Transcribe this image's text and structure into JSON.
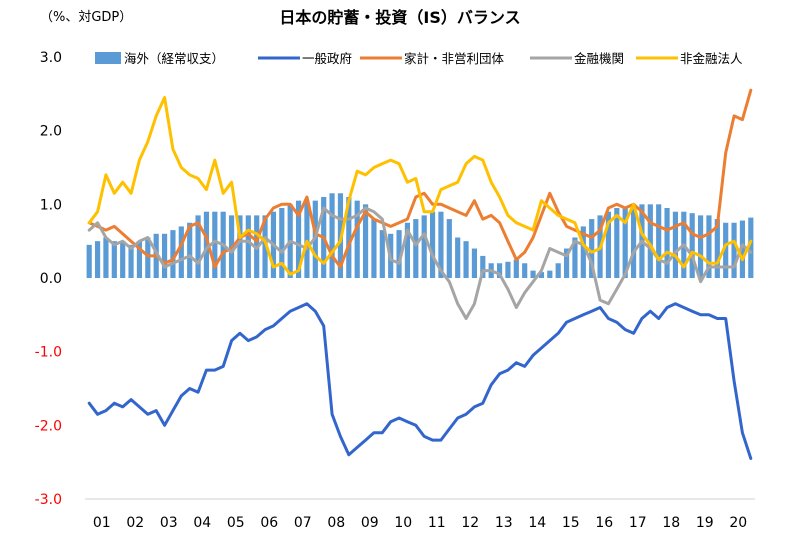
{
  "chart_data": {
    "type": "bar+line",
    "title": "日本の貯蓄・投資（IS）バランス",
    "unit_label": "（%、対GDP）",
    "ylim": [
      -3.0,
      3.0
    ],
    "y_ticks": [
      3.0,
      2.0,
      1.0,
      0.0,
      -1.0,
      -2.0,
      -3.0
    ],
    "y_tick_labels": [
      "3.0",
      "2.0",
      "1.0",
      "0.0",
      "-1.0",
      "-2.0",
      "-3.0"
    ],
    "x_labels": [
      "01",
      "02",
      "03",
      "04",
      "05",
      "06",
      "07",
      "08",
      "09",
      "10",
      "11",
      "12",
      "13",
      "14",
      "15",
      "16",
      "17",
      "18",
      "19",
      "20"
    ],
    "x_start": 2001.0,
    "x_step": 0.25,
    "legend_position": "top",
    "colors": {
      "overseas": "#5B9BD5",
      "government": "#3366CC",
      "household": "#ED7D31",
      "financial": "#A5A5A5",
      "nonfinancial": "#FFC000",
      "negative_tick": "#FF0000",
      "axis_text": "#000000"
    },
    "series": [
      {
        "name": "海外（経常収支）",
        "key": "overseas",
        "kind": "bar",
        "values": [
          0.45,
          0.5,
          0.55,
          0.5,
          0.5,
          0.45,
          0.5,
          0.55,
          0.6,
          0.6,
          0.65,
          0.7,
          0.75,
          0.85,
          0.9,
          0.9,
          0.9,
          0.85,
          0.85,
          0.85,
          0.85,
          0.85,
          0.9,
          0.95,
          1.0,
          1.05,
          1.05,
          1.05,
          1.1,
          1.15,
          1.15,
          1.1,
          1.05,
          1.0,
          0.8,
          0.65,
          0.6,
          0.65,
          0.75,
          0.8,
          0.85,
          0.9,
          0.9,
          0.8,
          0.55,
          0.5,
          0.4,
          0.3,
          0.2,
          0.2,
          0.22,
          0.25,
          0.2,
          0.1,
          0.08,
          0.1,
          0.2,
          0.4,
          0.55,
          0.7,
          0.8,
          0.85,
          0.9,
          0.95,
          0.95,
          1.0,
          1.0,
          1.0,
          1.0,
          0.95,
          0.9,
          0.9,
          0.88,
          0.85,
          0.85,
          0.8,
          0.75,
          0.75,
          0.78,
          0.82
        ]
      },
      {
        "name": "一般政府",
        "key": "government",
        "kind": "line",
        "values": [
          -1.7,
          -1.85,
          -1.8,
          -1.7,
          -1.75,
          -1.65,
          -1.75,
          -1.85,
          -1.8,
          -2.0,
          -1.8,
          -1.6,
          -1.5,
          -1.55,
          -1.25,
          -1.25,
          -1.2,
          -0.85,
          -0.75,
          -0.85,
          -0.8,
          -0.7,
          -0.65,
          -0.55,
          -0.45,
          -0.4,
          -0.35,
          -0.45,
          -0.65,
          -1.85,
          -2.15,
          -2.4,
          -2.3,
          -2.2,
          -2.1,
          -2.1,
          -1.95,
          -1.9,
          -1.95,
          -2.0,
          -2.15,
          -2.2,
          -2.2,
          -2.05,
          -1.9,
          -1.85,
          -1.75,
          -1.7,
          -1.45,
          -1.3,
          -1.25,
          -1.15,
          -1.2,
          -1.05,
          -0.95,
          -0.85,
          -0.75,
          -0.6,
          -0.55,
          -0.5,
          -0.45,
          -0.4,
          -0.55,
          -0.6,
          -0.7,
          -0.75,
          -0.55,
          -0.45,
          -0.55,
          -0.4,
          -0.35,
          -0.4,
          -0.45,
          -0.5,
          -0.5,
          -0.55,
          -0.55,
          -1.4,
          -2.1,
          -2.45
        ]
      },
      {
        "name": "家計・非営利団体",
        "key": "household",
        "kind": "line",
        "values": [
          0.75,
          0.7,
          0.65,
          0.7,
          0.6,
          0.5,
          0.4,
          0.3,
          0.3,
          0.2,
          0.25,
          0.45,
          0.7,
          0.75,
          0.55,
          0.15,
          0.35,
          0.4,
          0.55,
          0.6,
          0.5,
          0.8,
          0.95,
          1.0,
          1.0,
          0.85,
          1.1,
          0.6,
          0.55,
          0.3,
          0.15,
          0.45,
          0.7,
          0.9,
          0.8,
          0.75,
          0.7,
          0.75,
          0.8,
          1.1,
          1.15,
          1.0,
          1.0,
          0.95,
          0.9,
          0.85,
          1.05,
          0.8,
          0.85,
          0.75,
          0.5,
          0.25,
          0.35,
          0.55,
          0.85,
          1.15,
          0.9,
          0.7,
          0.65,
          0.6,
          0.55,
          0.65,
          0.95,
          1.0,
          0.95,
          1.0,
          0.9,
          0.75,
          0.7,
          0.65,
          0.7,
          0.75,
          0.6,
          0.55,
          0.6,
          0.7,
          1.7,
          2.2,
          2.15,
          2.55
        ]
      },
      {
        "name": "金融機関",
        "key": "financial",
        "kind": "line",
        "values": [
          0.65,
          0.75,
          0.55,
          0.45,
          0.5,
          0.4,
          0.5,
          0.55,
          0.35,
          0.15,
          0.2,
          0.25,
          0.3,
          0.2,
          0.4,
          0.5,
          0.45,
          0.35,
          0.5,
          0.5,
          0.4,
          0.55,
          0.45,
          0.35,
          0.5,
          0.45,
          0.4,
          0.55,
          0.95,
          0.85,
          0.8,
          0.8,
          0.85,
          0.95,
          0.9,
          0.8,
          0.25,
          0.2,
          0.65,
          0.45,
          0.6,
          0.3,
          0.1,
          -0.05,
          -0.35,
          -0.55,
          -0.35,
          0.1,
          0.1,
          0.05,
          -0.15,
          -0.4,
          -0.2,
          -0.05,
          0.1,
          0.4,
          0.35,
          0.3,
          0.5,
          0.45,
          0.2,
          -0.3,
          -0.35,
          -0.15,
          0.05,
          0.35,
          0.5,
          0.4,
          0.25,
          0.2,
          0.35,
          0.45,
          0.3,
          -0.05,
          0.15,
          0.15,
          0.15,
          0.15,
          0.45,
          0.35
        ]
      },
      {
        "name": "非金融法人",
        "key": "nonfinancial",
        "kind": "line",
        "values": [
          0.75,
          0.9,
          1.4,
          1.15,
          1.3,
          1.15,
          1.6,
          1.85,
          2.2,
          2.45,
          1.75,
          1.5,
          1.4,
          1.35,
          1.2,
          1.6,
          1.15,
          1.3,
          0.55,
          0.65,
          0.6,
          0.5,
          0.15,
          0.2,
          0.05,
          0.1,
          0.5,
          0.3,
          0.2,
          0.35,
          0.5,
          1.05,
          1.45,
          1.4,
          1.5,
          1.55,
          1.6,
          1.55,
          1.3,
          1.35,
          0.9,
          0.9,
          1.2,
          1.25,
          1.3,
          1.55,
          1.65,
          1.6,
          1.3,
          1.1,
          0.85,
          0.75,
          0.7,
          0.65,
          1.05,
          0.95,
          0.85,
          0.8,
          0.75,
          0.45,
          0.35,
          0.4,
          0.75,
          0.85,
          0.75,
          1.0,
          0.6,
          0.45,
          0.25,
          0.35,
          0.3,
          0.15,
          0.35,
          0.3,
          0.2,
          0.2,
          0.45,
          0.5,
          0.25,
          0.5
        ]
      }
    ]
  }
}
